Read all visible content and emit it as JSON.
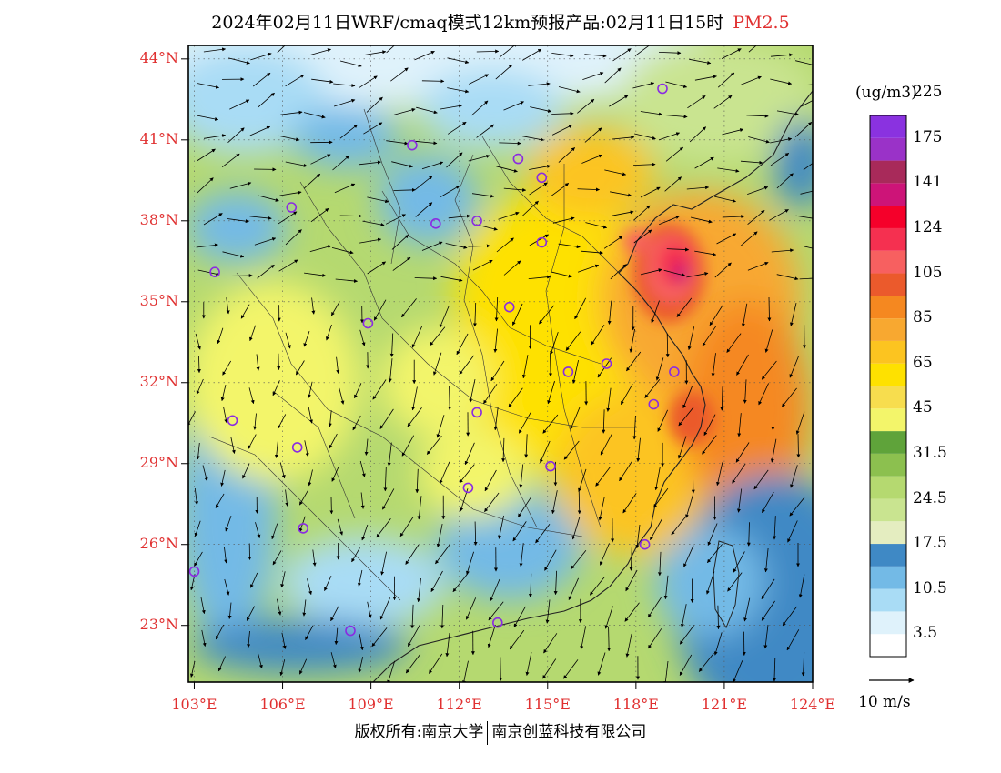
{
  "title": {
    "text": "2024年02月11日WRF/cmaq模式12km预报产品:02月11日15时",
    "pollutant": "PM2.5"
  },
  "map": {
    "lon_range": [
      102.8,
      124.0
    ],
    "lat_range": [
      20.9,
      44.5
    ],
    "lat_ticks": [
      {
        "value": 44,
        "label": "44°N"
      },
      {
        "value": 41,
        "label": "41°N"
      },
      {
        "value": 38,
        "label": "38°N"
      },
      {
        "value": 35,
        "label": "35°N"
      },
      {
        "value": 32,
        "label": "32°N"
      },
      {
        "value": 29,
        "label": "29°N"
      },
      {
        "value": 26,
        "label": "26°N"
      },
      {
        "value": 23,
        "label": "23°N"
      }
    ],
    "lon_ticks": [
      {
        "value": 103,
        "label": "103°E"
      },
      {
        "value": 106,
        "label": "106°E"
      },
      {
        "value": 109,
        "label": "109°E"
      },
      {
        "value": 112,
        "label": "112°E"
      },
      {
        "value": 115,
        "label": "115°E"
      },
      {
        "value": 118,
        "label": "118°E"
      },
      {
        "value": 121,
        "label": "121°E"
      },
      {
        "value": 124,
        "label": "124°E"
      }
    ],
    "sea_color": "#3a80c0",
    "city_marker_color": "#8a2be2",
    "cities": [
      [
        118.9,
        42.9
      ],
      [
        110.4,
        40.8
      ],
      [
        114.0,
        40.3
      ],
      [
        114.8,
        39.6
      ],
      [
        106.3,
        38.5
      ],
      [
        111.2,
        37.9
      ],
      [
        112.6,
        38.0
      ],
      [
        114.8,
        37.2
      ],
      [
        103.7,
        36.1
      ],
      [
        113.7,
        34.8
      ],
      [
        108.9,
        34.2
      ],
      [
        115.7,
        32.4
      ],
      [
        117.0,
        32.7
      ],
      [
        119.3,
        32.4
      ],
      [
        104.3,
        30.6
      ],
      [
        112.6,
        30.9
      ],
      [
        118.6,
        31.2
      ],
      [
        106.5,
        29.6
      ],
      [
        115.1,
        28.9
      ],
      [
        112.3,
        28.1
      ],
      [
        106.7,
        26.6
      ],
      [
        103.0,
        25.0
      ],
      [
        118.3,
        26.0
      ],
      [
        108.3,
        22.8
      ],
      [
        113.3,
        23.1
      ]
    ]
  },
  "colorbar": {
    "unit": "(ug/m3)",
    "bins": [
      {
        "color": "#ffffff"
      },
      {
        "color": "#dff2fb"
      },
      {
        "color": "#a9dcf5"
      },
      {
        "color": "#73bae6"
      },
      {
        "color": "#3f89c5"
      },
      {
        "color": "#e4edc0"
      },
      {
        "color": "#c9e490"
      },
      {
        "color": "#b5d970"
      },
      {
        "color": "#8cc04f"
      },
      {
        "color": "#5fa33a"
      },
      {
        "color": "#f3f56a"
      },
      {
        "color": "#f7dd4e"
      },
      {
        "color": "#fee100"
      },
      {
        "color": "#fcc420"
      },
      {
        "color": "#f8a830"
      },
      {
        "color": "#f58820"
      },
      {
        "color": "#eb5a2c"
      },
      {
        "color": "#f76060"
      },
      {
        "color": "#f53050"
      },
      {
        "color": "#f5002a"
      },
      {
        "color": "#cd1478"
      },
      {
        "color": "#a82a5a"
      },
      {
        "color": "#9a32c8"
      },
      {
        "color": "#8a32e0"
      }
    ],
    "labels": [
      "3.5",
      "10.5",
      "17.5",
      "24.5",
      "31.5",
      "45",
      "65",
      "85",
      "105",
      "124",
      "141",
      "175",
      "225"
    ]
  },
  "wind_reference": {
    "label": "10 m/s"
  },
  "copyright": {
    "left": "版权所有:南京大学",
    "right": "南京创蓝科技有限公司"
  }
}
